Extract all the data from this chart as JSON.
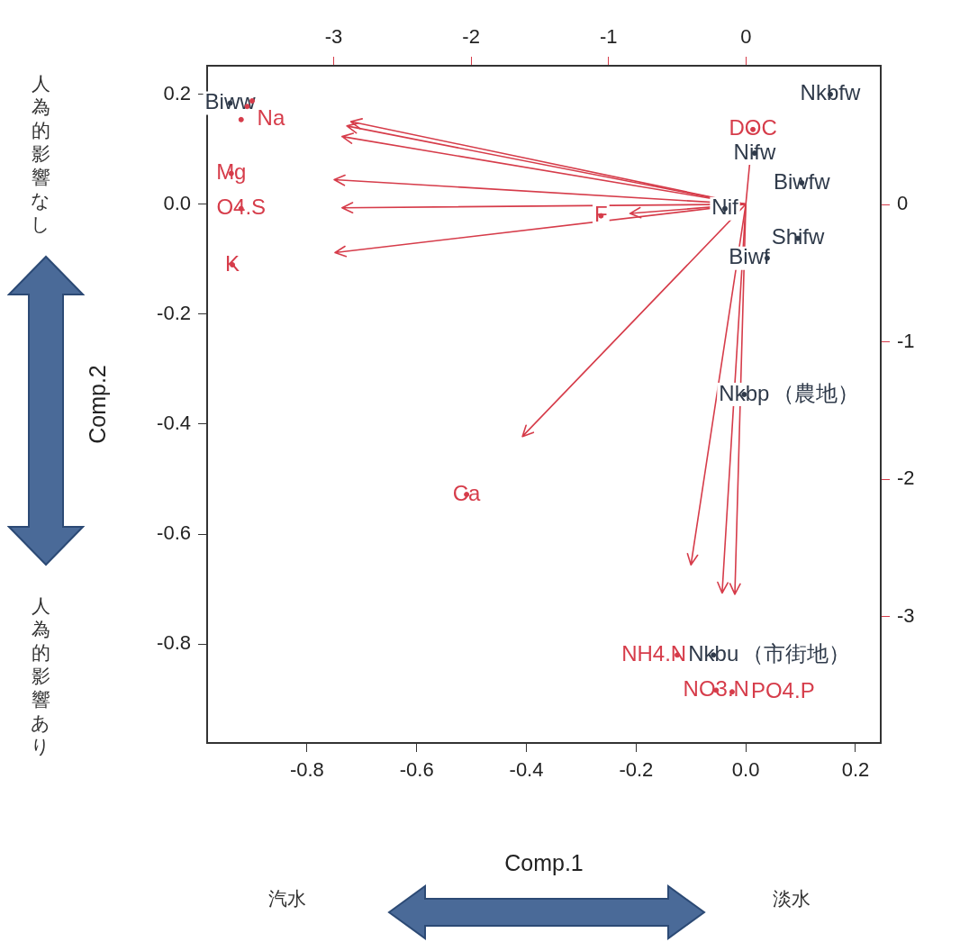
{
  "chart_data": {
    "type": "scatter",
    "xlabel": "Comp.1",
    "ylabel": "Comp.2",
    "marker": "circle",
    "xlim": [
      -0.982,
      0.246
    ],
    "ylim": [
      -0.98,
      0.252
    ],
    "x2lim": [
      -3.92,
      0.98
    ],
    "y2lim": [
      -3.92,
      1.01
    ],
    "xticks": [
      -0.8,
      -0.6,
      -0.4,
      -0.2,
      {
        "value": 0,
        "label": "0.0"
      },
      0.2
    ],
    "yticks": [
      -0.8,
      -0.6,
      -0.4,
      -0.2,
      {
        "value": 0,
        "label": "0.0"
      },
      0.2
    ],
    "x2ticks": [
      -3,
      -2,
      -1,
      0
    ],
    "y2ticks": [
      -3,
      -2,
      -1,
      0
    ],
    "series": [
      {
        "type": "scatter",
        "color": "#2f3a4a",
        "x": [
          -0.94,
          0.154,
          0.016,
          0.102,
          -0.038,
          0.095,
          0.039,
          -0.003,
          -0.059
        ],
        "values": [
          0.184,
          0.2,
          0.093,
          0.039,
          -0.008,
          -0.062,
          -0.098,
          -0.346,
          -0.82
        ],
        "value_labels": [
          "Biww",
          "Nkbfw",
          "Nifw",
          "Biwfw",
          "Nif",
          "Shifw",
          "Biwf",
          "Nkbp",
          "Nkbu"
        ]
      },
      {
        "type": "scatter",
        "color": "#d63c4a",
        "x": [
          -0.92,
          -0.909,
          -0.9,
          -0.938,
          -0.92,
          -0.936,
          -0.264,
          -0.509,
          0.013,
          -0.125,
          -0.054,
          -0.025
        ],
        "values": [
          0.154,
          0.178,
          0.188,
          0.056,
          -0.008,
          -0.11,
          -0.021,
          -0.528,
          0.136,
          -0.82,
          -0.884,
          -0.887
        ],
        "value_labels": [
          "Na",
          null,
          null,
          "Mg",
          "O4.S",
          "K",
          "F",
          "Ca",
          "DOC",
          "NH4.N",
          "NO3.N",
          "PO4.P"
        ]
      }
    ],
    "annotations": [
      "人為的影響なし",
      "人為的影響あり",
      "汽水",
      "淡水",
      {
        "text": "（農地）",
        "x": -0.003,
        "y": -0.346
      },
      {
        "text": "（市街地）",
        "x": -0.059,
        "y": -0.82
      }
    ]
  }
}
